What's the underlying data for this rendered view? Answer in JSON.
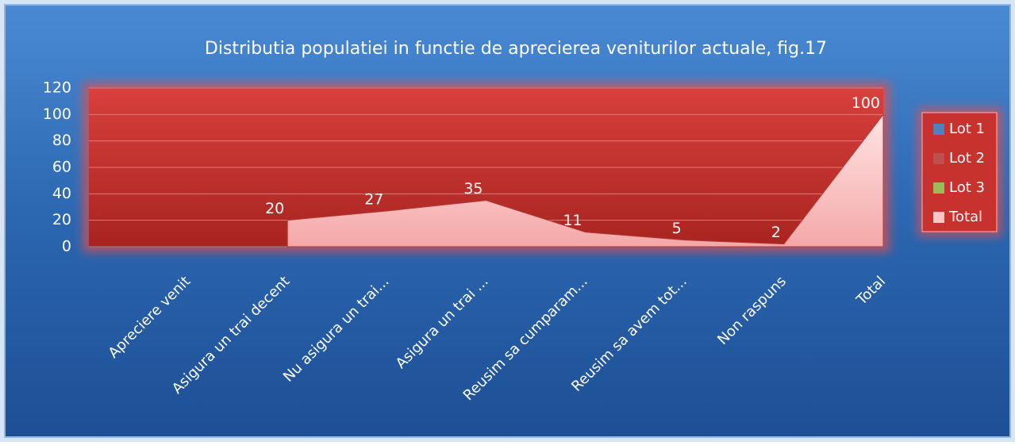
{
  "chart_data": {
    "type": "area",
    "title": "Distributia populatiei in functie de aprecierea veniturilor actuale, fig.17",
    "categories": [
      "Apreciere venit",
      "Asigura un trai decent",
      "Nu asigura un trai...",
      "Asigura un trai ...",
      "Reusim sa cumparam...",
      "Reusim sa avem tot...",
      "Non raspuns",
      "Total"
    ],
    "series": [
      {
        "name": "Lot 1",
        "color": "#4f81bd",
        "values": [
          null,
          null,
          null,
          null,
          null,
          null,
          null,
          null
        ]
      },
      {
        "name": "Lot 2",
        "color": "#c0504d",
        "values": [
          null,
          null,
          null,
          null,
          null,
          null,
          null,
          null
        ]
      },
      {
        "name": "Lot 3",
        "color": "#9bbb59",
        "values": [
          null,
          null,
          null,
          null,
          null,
          null,
          null,
          null
        ]
      },
      {
        "name": "Total",
        "color": "#ffc4c4",
        "values": [
          null,
          20,
          27,
          35,
          11,
          5,
          2,
          100
        ]
      }
    ],
    "ylim": [
      0,
      120
    ],
    "yticks": [
      0,
      20,
      40,
      60,
      80,
      100,
      120
    ],
    "grid": true,
    "legend": "right"
  }
}
